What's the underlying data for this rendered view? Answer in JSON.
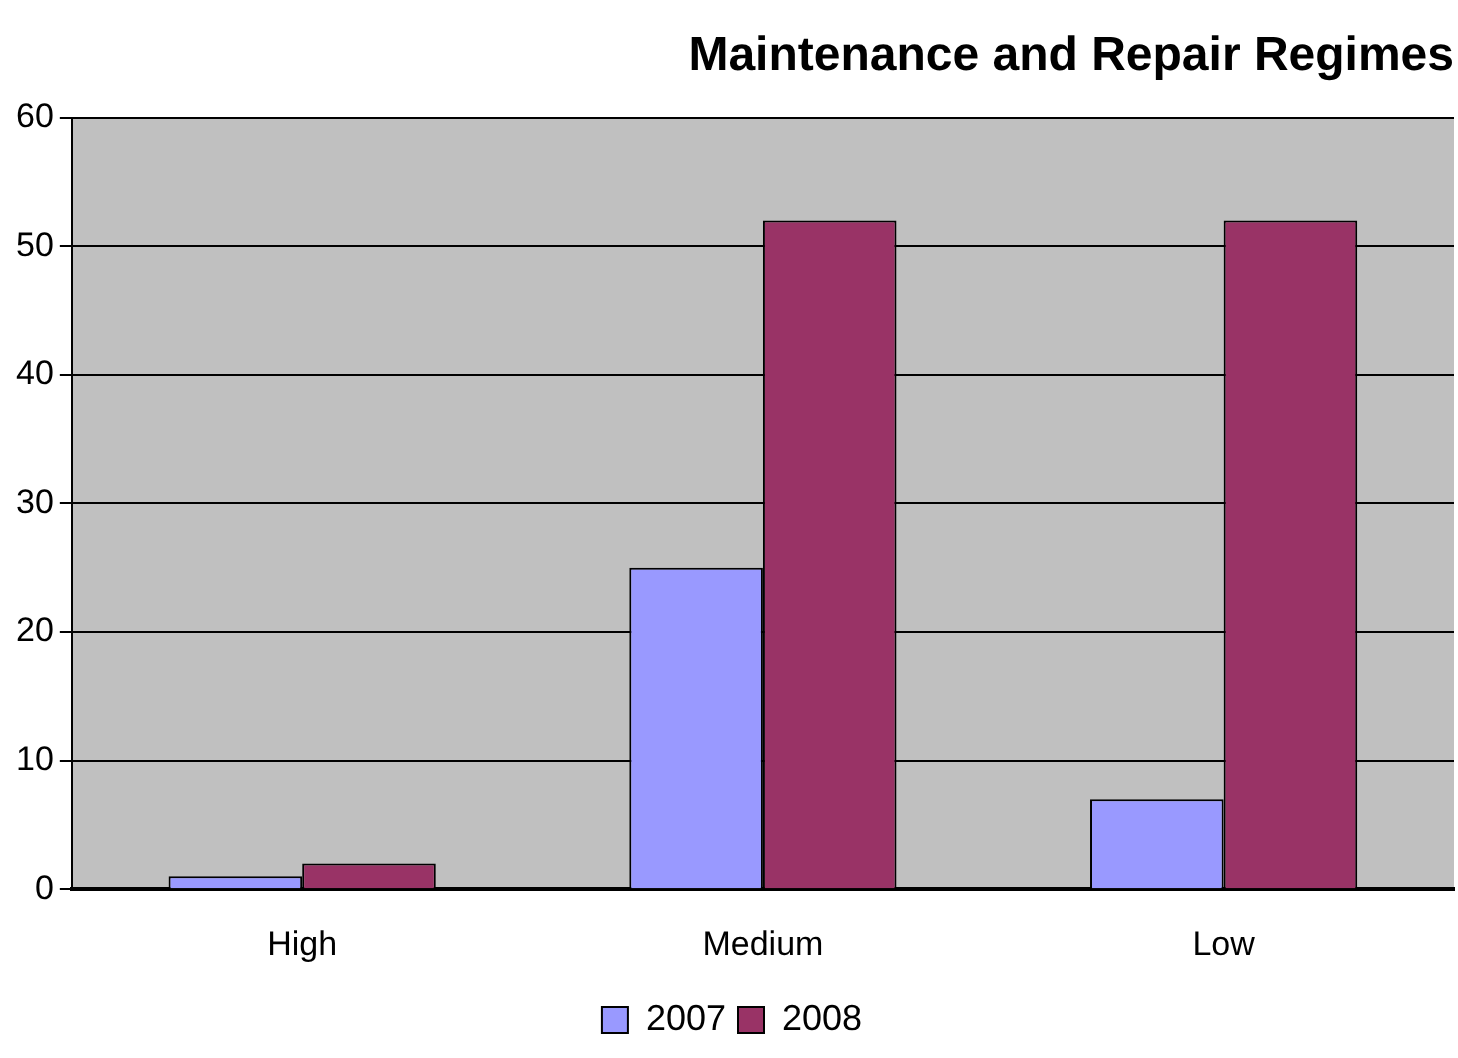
{
  "chart_data": {
    "type": "bar",
    "title": "Maintenance and Repair Regimes",
    "categories": [
      "High",
      "Medium",
      "Low"
    ],
    "series": [
      {
        "name": "2007",
        "color": "#9999ff",
        "values": [
          1,
          25,
          7
        ]
      },
      {
        "name": "2008",
        "color": "#993366",
        "values": [
          2,
          52,
          52
        ]
      }
    ],
    "ylim": [
      0,
      60
    ],
    "yticks": [
      0,
      10,
      20,
      30,
      40,
      50,
      60
    ],
    "grid": "y",
    "legend": "bottom"
  }
}
